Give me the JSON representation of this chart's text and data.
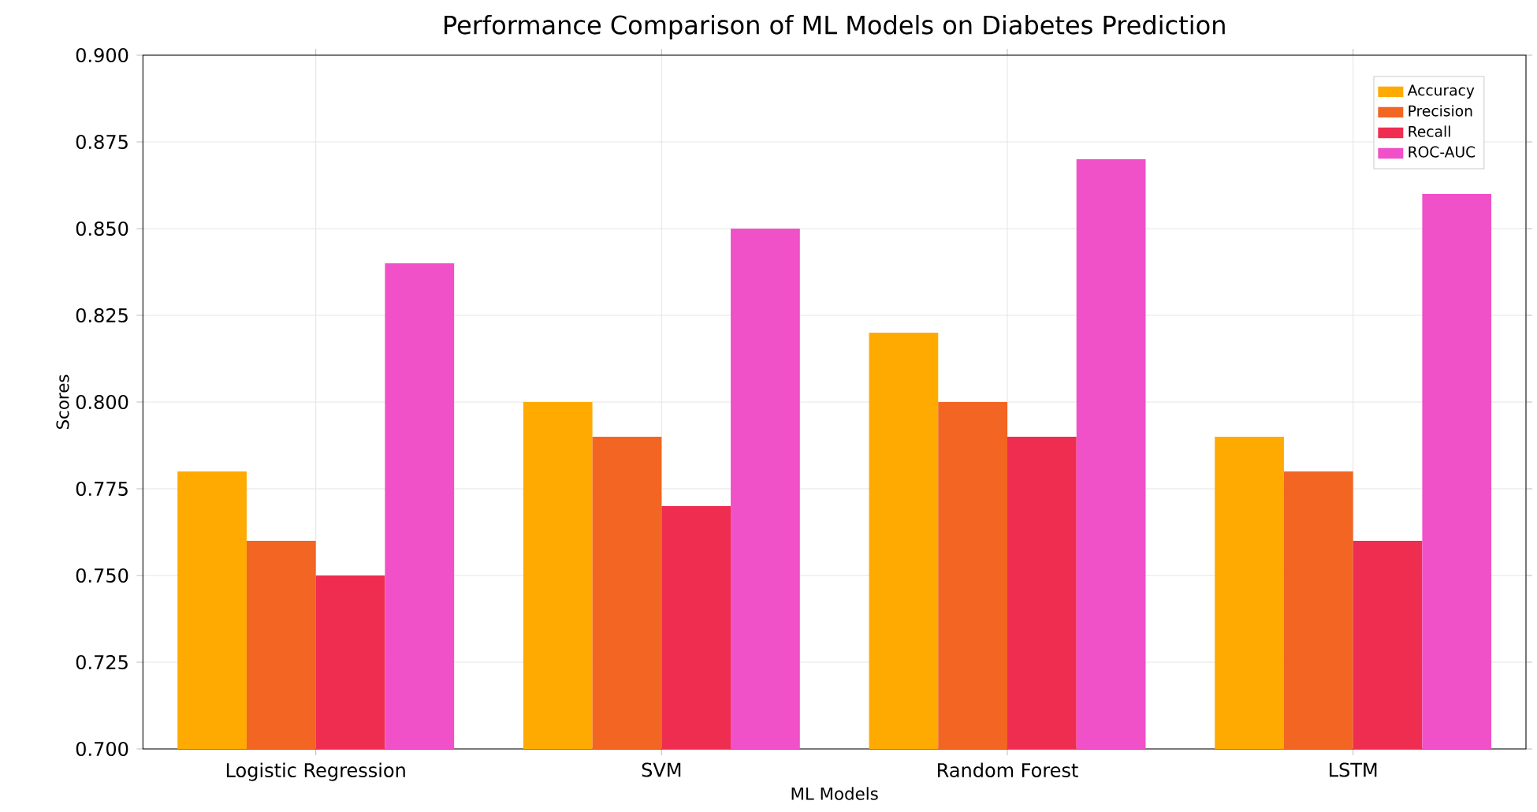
{
  "chart_data": {
    "type": "bar",
    "title": "Performance Comparison of ML Models on Diabetes Prediction",
    "xlabel": "ML Models",
    "ylabel": "Scores",
    "categories": [
      "Logistic Regression",
      "SVM",
      "Random Forest",
      "LSTM"
    ],
    "series": [
      {
        "name": "Accuracy",
        "color": "#ffaa00",
        "values": [
          0.78,
          0.8,
          0.82,
          0.79
        ]
      },
      {
        "name": "Precision",
        "color": "#f26522",
        "values": [
          0.76,
          0.79,
          0.8,
          0.78
        ]
      },
      {
        "name": "Recall",
        "color": "#ef2d50",
        "values": [
          0.75,
          0.77,
          0.79,
          0.76
        ]
      },
      {
        "name": "ROC-AUC",
        "color": "#f050c8",
        "values": [
          0.84,
          0.85,
          0.87,
          0.86
        ]
      }
    ],
    "ylim": [
      0.7,
      0.9
    ],
    "yticks": [
      {
        "value": 0.7,
        "label": "0.700"
      },
      {
        "value": 0.725,
        "label": "0.725"
      },
      {
        "value": 0.75,
        "label": "0.750"
      },
      {
        "value": 0.775,
        "label": "0.775"
      },
      {
        "value": 0.8,
        "label": "0.800"
      },
      {
        "value": 0.825,
        "label": "0.825"
      },
      {
        "value": 0.85,
        "label": "0.850"
      },
      {
        "value": 0.875,
        "label": "0.875"
      },
      {
        "value": 0.9,
        "label": "0.900"
      }
    ],
    "grid": true,
    "legend": "top right"
  }
}
